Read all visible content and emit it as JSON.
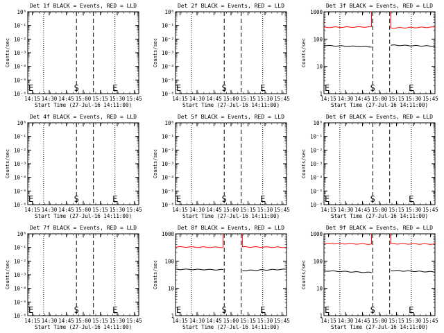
{
  "page": {
    "background": "#ffffff",
    "axis_color": "#000000"
  },
  "common": {
    "xlabel": "Start Time (27-Jul-16 14:11:00)",
    "ylabel": "Counts/sec",
    "x_tick_labels": [
      "14:15",
      "14:30",
      "14:45",
      "15:00",
      "15:15",
      "15:30",
      "15:45"
    ],
    "y_tick_labels_log_small": [
      "10⁰",
      "10⁻¹",
      "10⁻²",
      "10⁻³",
      "10⁻⁴",
      "10⁻⁵",
      "10⁻⁶"
    ],
    "y_tick_labels_log_large": [
      "1",
      "10",
      "100",
      "1000"
    ],
    "colors": {
      "events": "#000000",
      "lld": "#ff0000"
    },
    "marker_S": "S",
    "marker_E": "E"
  },
  "chart_data": [
    {
      "type": "line",
      "title": "Det 1f BLACK = Events, RED = LLD",
      "xlabel": "Start Time (27-Jul-16 14:11:00)",
      "ylabel": "Counts/sec",
      "x_range": [
        "14:11",
        "15:49"
      ],
      "y_scale": "log",
      "ylim": [
        1e-06,
        1
      ],
      "dotted_lines": [
        "14:25",
        "15:28"
      ],
      "dashed_lines": [
        "14:54",
        "15:09"
      ],
      "markers": [
        {
          "label": "E",
          "x": "14:12"
        },
        {
          "label": "S",
          "x": "14:54"
        },
        {
          "label": "E",
          "x": "15:28"
        }
      ],
      "series": []
    },
    {
      "type": "line",
      "title": "Det 2f BLACK = Events, RED = LLD",
      "xlabel": "Start Time (27-Jul-16 14:11:00)",
      "ylabel": "Counts/sec",
      "x_range": [
        "14:11",
        "15:49"
      ],
      "y_scale": "log",
      "ylim": [
        1e-06,
        1
      ],
      "dotted_lines": [
        "14:25",
        "15:28"
      ],
      "dashed_lines": [
        "14:54",
        "15:09"
      ],
      "markers": [
        {
          "label": "E",
          "x": "14:12"
        },
        {
          "label": "S",
          "x": "14:54"
        },
        {
          "label": "E",
          "x": "15:28"
        }
      ],
      "series": []
    },
    {
      "type": "line",
      "title": "Det 3f BLACK = Events, RED = LLD",
      "xlabel": "Start Time (27-Jul-16 14:11:00)",
      "ylabel": "Counts/sec",
      "x_range": [
        "14:11",
        "15:49"
      ],
      "y_scale": "log",
      "ylim": [
        1,
        1000
      ],
      "dotted_lines": [
        "14:25",
        "15:28"
      ],
      "dashed_lines": [
        "14:54",
        "15:09"
      ],
      "markers": [
        {
          "label": "E",
          "x": "14:12"
        },
        {
          "label": "S",
          "x": "14:54"
        },
        {
          "label": "E",
          "x": "15:28"
        }
      ],
      "series": [
        {
          "color": "#ff0000",
          "segments": [
            {
              "x": [
                "14:11",
                "14:53"
              ],
              "y": [
                270,
                280
              ]
            },
            {
              "x": [
                "15:10",
                "15:49"
              ],
              "y": [
                255,
                275
              ]
            }
          ]
        },
        {
          "color": "#000000",
          "segments": [
            {
              "x": [
                "14:11",
                "14:53"
              ],
              "y": [
                58,
                52
              ]
            },
            {
              "x": [
                "15:10",
                "15:49"
              ],
              "y": [
                60,
                55
              ]
            }
          ]
        }
      ]
    },
    {
      "type": "line",
      "title": "Det 4f BLACK = Events, RED = LLD",
      "xlabel": "Start Time (27-Jul-16 14:11:00)",
      "ylabel": "Counts/sec",
      "x_range": [
        "14:11",
        "15:49"
      ],
      "y_scale": "log",
      "ylim": [
        1e-06,
        1
      ],
      "dotted_lines": [
        "14:25",
        "15:28"
      ],
      "dashed_lines": [
        "14:54",
        "15:09"
      ],
      "markers": [
        {
          "label": "E",
          "x": "14:12"
        },
        {
          "label": "S",
          "x": "14:54"
        },
        {
          "label": "E",
          "x": "15:28"
        }
      ],
      "series": []
    },
    {
      "type": "line",
      "title": "Det 5f BLACK = Events, RED = LLD",
      "xlabel": "Start Time (27-Jul-16 14:11:00)",
      "ylabel": "Counts/sec",
      "x_range": [
        "14:11",
        "15:49"
      ],
      "y_scale": "log",
      "ylim": [
        1e-06,
        1
      ],
      "dotted_lines": [
        "14:25",
        "15:28"
      ],
      "dashed_lines": [
        "14:54",
        "15:09"
      ],
      "markers": [
        {
          "label": "E",
          "x": "14:12"
        },
        {
          "label": "S",
          "x": "14:54"
        },
        {
          "label": "E",
          "x": "15:28"
        }
      ],
      "series": []
    },
    {
      "type": "line",
      "title": "Det 6f BLACK = Events, RED = LLD",
      "xlabel": "Start Time (27-Jul-16 14:11:00)",
      "ylabel": "Counts/sec",
      "x_range": [
        "14:11",
        "15:49"
      ],
      "y_scale": "log",
      "ylim": [
        1e-06,
        1
      ],
      "dotted_lines": [
        "14:25",
        "15:28"
      ],
      "dashed_lines": [
        "14:54",
        "15:09"
      ],
      "markers": [
        {
          "label": "E",
          "x": "14:12"
        },
        {
          "label": "S",
          "x": "14:54"
        },
        {
          "label": "E",
          "x": "15:28"
        }
      ],
      "series": []
    },
    {
      "type": "line",
      "title": "Det 7f BLACK = Events, RED = LLD",
      "xlabel": "Start Time (27-Jul-16 14:11:00)",
      "ylabel": "Counts/sec",
      "x_range": [
        "14:11",
        "15:49"
      ],
      "y_scale": "log",
      "ylim": [
        1e-06,
        1
      ],
      "dotted_lines": [
        "14:25",
        "15:28"
      ],
      "dashed_lines": [
        "14:54",
        "15:09"
      ],
      "markers": [
        {
          "label": "E",
          "x": "14:12"
        },
        {
          "label": "S",
          "x": "14:54"
        },
        {
          "label": "E",
          "x": "15:28"
        }
      ],
      "series": []
    },
    {
      "type": "line",
      "title": "Det 8f BLACK = Events, RED = LLD",
      "xlabel": "Start Time (27-Jul-16 14:11:00)",
      "ylabel": "Counts/sec",
      "x_range": [
        "14:11",
        "15:49"
      ],
      "y_scale": "log",
      "ylim": [
        1,
        1000
      ],
      "dotted_lines": [
        "14:25",
        "15:28"
      ],
      "dashed_lines": [
        "14:54",
        "15:09"
      ],
      "markers": [
        {
          "label": "E",
          "x": "14:12"
        },
        {
          "label": "S",
          "x": "14:54"
        },
        {
          "label": "E",
          "x": "15:28"
        }
      ],
      "series": [
        {
          "color": "#ff0000",
          "segments": [
            {
              "x": [
                "14:11",
                "14:53"
              ],
              "y": [
                330,
                320
              ]
            },
            {
              "x": [
                "15:10",
                "15:49"
              ],
              "y": [
                330,
                320
              ]
            }
          ]
        },
        {
          "color": "#000000",
          "segments": [
            {
              "x": [
                "14:11",
                "14:53"
              ],
              "y": [
                50,
                48
              ]
            },
            {
              "x": [
                "15:10",
                "15:49"
              ],
              "y": [
                45,
                50
              ]
            }
          ]
        }
      ]
    },
    {
      "type": "line",
      "title": "Det 9f BLACK = Events, RED = LLD",
      "xlabel": "Start Time (27-Jul-16 14:11:00)",
      "ylabel": "Counts/sec",
      "x_range": [
        "14:11",
        "15:49"
      ],
      "y_scale": "log",
      "ylim": [
        1,
        1000
      ],
      "dotted_lines": [
        "14:25",
        "15:28"
      ],
      "dashed_lines": [
        "14:54",
        "15:09"
      ],
      "markers": [
        {
          "label": "E",
          "x": "14:12"
        },
        {
          "label": "S",
          "x": "14:54"
        },
        {
          "label": "E",
          "x": "15:28"
        }
      ],
      "series": [
        {
          "color": "#ff0000",
          "segments": [
            {
              "x": [
                "14:11",
                "14:53"
              ],
              "y": [
                440,
                420
              ]
            },
            {
              "x": [
                "15:10",
                "15:49"
              ],
              "y": [
                430,
                420
              ]
            }
          ]
        },
        {
          "color": "#000000",
          "segments": [
            {
              "x": [
                "14:11",
                "14:53"
              ],
              "y": [
                44,
                38
              ]
            },
            {
              "x": [
                "15:10",
                "15:49"
              ],
              "y": [
                45,
                40
              ]
            }
          ]
        }
      ]
    }
  ]
}
